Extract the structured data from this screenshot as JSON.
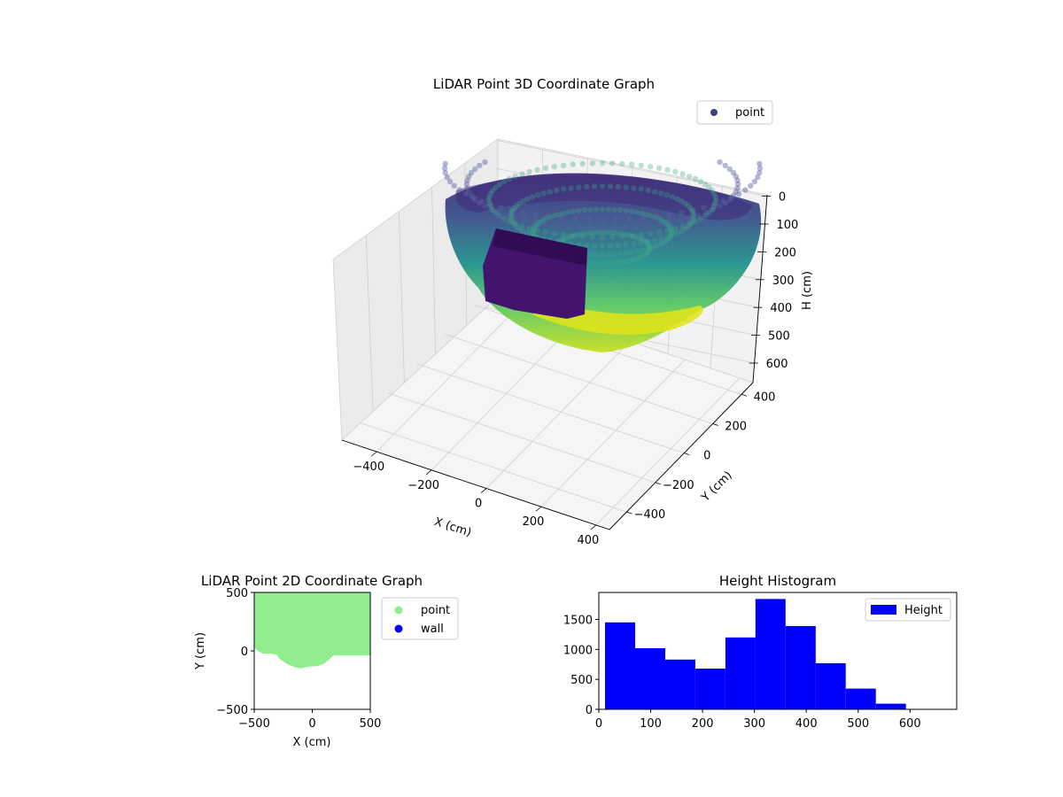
{
  "chart_data": [
    {
      "type": "scatter",
      "projection": "3d",
      "title": "LiDAR Point 3D Coordinate Graph",
      "xlabel": "X (cm)",
      "ylabel": "Y (cm)",
      "zlabel": "H (cm)",
      "x_ticks": [
        "−400",
        "−200",
        "0",
        "200",
        "400"
      ],
      "y_ticks": [
        "−400",
        "−200",
        "0",
        "200",
        "400"
      ],
      "z_ticks": [
        "0",
        "100",
        "200",
        "300",
        "400",
        "500",
        "600"
      ],
      "z_inverted": true,
      "grid": true,
      "legend": {
        "position": "top-right",
        "entries": [
          {
            "label": "point",
            "color": "#3b3f86"
          }
        ]
      },
      "colormap": "viridis",
      "series": [
        {
          "name": "point",
          "description": "bowl-shaped point cloud; points near floor (~600 cm) colored yellow, near ceiling (~0 cm) colored dark purple"
        }
      ]
    },
    {
      "type": "scatter",
      "title": "LiDAR Point 2D Coordinate Graph",
      "xlabel": "X (cm)",
      "ylabel": "Y (cm)",
      "xlim": [
        -500,
        500
      ],
      "ylim": [
        -500,
        500
      ],
      "x_ticks": [
        "−500",
        "0",
        "500"
      ],
      "y_ticks": [
        "−500",
        "0",
        "500"
      ],
      "legend": {
        "position": "outside-right",
        "entries": [
          {
            "label": "point",
            "color": "#90ee90"
          },
          {
            "label": "wall",
            "color": "#0000ff"
          }
        ]
      },
      "series": [
        {
          "name": "point",
          "color": "#90ee90",
          "boundary": [
            [
              -500,
              500
            ],
            [
              500,
              500
            ],
            [
              500,
              -40
            ],
            [
              180,
              -40
            ],
            [
              150,
              -70
            ],
            [
              100,
              -110
            ],
            [
              40,
              -130
            ],
            [
              -30,
              -135
            ],
            [
              -100,
              -150
            ],
            [
              -150,
              -140
            ],
            [
              -220,
              -110
            ],
            [
              -280,
              -70
            ],
            [
              -310,
              -30
            ],
            [
              -350,
              -25
            ],
            [
              -420,
              -25
            ],
            [
              -460,
              -5
            ],
            [
              -480,
              10
            ],
            [
              -500,
              30
            ]
          ]
        }
      ]
    },
    {
      "type": "bar",
      "subtype": "histogram",
      "title": "Height Histogram",
      "xlim": [
        0,
        690
      ],
      "ylim": [
        0,
        1950
      ],
      "x_ticks": [
        "0",
        "100",
        "200",
        "300",
        "400",
        "500",
        "600"
      ],
      "y_ticks": [
        "0",
        "500",
        "1000",
        "1500"
      ],
      "legend": {
        "position": "top-right",
        "entries": [
          {
            "label": "Height",
            "color": "#0000ff"
          }
        ]
      },
      "color": "#0000ff",
      "bin_edges": [
        12,
        70,
        128,
        186,
        244,
        302,
        360,
        418,
        476,
        534,
        592
      ],
      "values": [
        1450,
        1020,
        830,
        680,
        1200,
        1840,
        1390,
        770,
        345,
        95
      ]
    }
  ]
}
